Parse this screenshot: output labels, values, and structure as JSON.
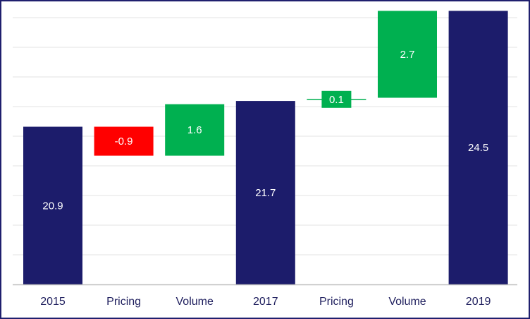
{
  "chart_data": {
    "type": "bar",
    "subtype": "waterfall",
    "title": "",
    "xlabel": "",
    "ylabel": "",
    "categories": [
      "2015",
      "Pricing",
      "Volume",
      "2017",
      "Pricing",
      "Volume",
      "2019"
    ],
    "values": [
      20.9,
      -0.9,
      1.6,
      21.7,
      0.1,
      2.7,
      24.5
    ],
    "kinds": [
      "total",
      "delta",
      "delta",
      "total",
      "delta",
      "delta",
      "total"
    ],
    "data_labels": [
      "20.9",
      "-0.9",
      "1.6",
      "21.7",
      "0.1",
      "2.7",
      "24.5"
    ],
    "ylim": [
      16,
      25
    ],
    "grid": true,
    "legend": "none",
    "colors": {
      "total": "#1c1c6b",
      "increase": "#00b050",
      "decrease": "#ff0000",
      "grid": "#e3e3e3",
      "axis": "#bfbfbf",
      "frame": "#1f1f6e"
    }
  }
}
